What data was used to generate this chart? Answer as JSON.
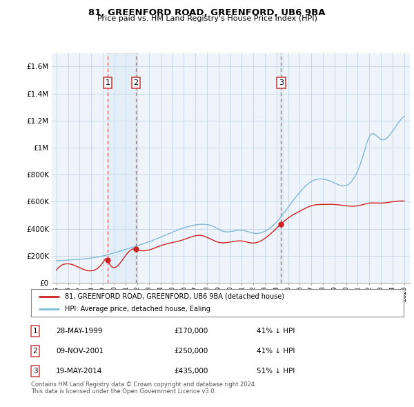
{
  "title": "81, GREENFORD ROAD, GREENFORD, UB6 9BA",
  "subtitle": "Price paid vs. HM Land Registry's House Price Index (HPI)",
  "hpi_label": "HPI: Average price, detached house, Ealing",
  "property_label": "81, GREENFORD ROAD, GREENFORD, UB6 9BA (detached house)",
  "footnote1": "Contains HM Land Registry data © Crown copyright and database right 2024.",
  "footnote2": "This data is licensed under the Open Government Licence v3.0.",
  "ylim": [
    0,
    1700000
  ],
  "yticks": [
    0,
    200000,
    400000,
    600000,
    800000,
    1000000,
    1200000,
    1400000,
    1600000
  ],
  "ytick_labels": [
    "£0",
    "£200K",
    "£400K",
    "£600K",
    "£800K",
    "£1M",
    "£1.2M",
    "£1.4M",
    "£1.6M"
  ],
  "transactions": [
    {
      "num": 1,
      "date": "28-MAY-1999",
      "price": 170000,
      "hpi_pct": "41% ↓ HPI",
      "year": 1999.42
    },
    {
      "num": 2,
      "date": "09-NOV-2001",
      "price": 250000,
      "hpi_pct": "41% ↓ HPI",
      "year": 2001.86
    },
    {
      "num": 3,
      "date": "19-MAY-2014",
      "price": 435000,
      "hpi_pct": "51% ↓ HPI",
      "year": 2014.38
    }
  ],
  "hpi_color": "#7fb8d8",
  "property_color": "#cc2222",
  "vline_color": "#cc4444",
  "chart_bg_color": "#eef4fa",
  "background_color": "#ffffff",
  "grid_color": "#c8d8e8",
  "shade_color": "#d0e4f4"
}
